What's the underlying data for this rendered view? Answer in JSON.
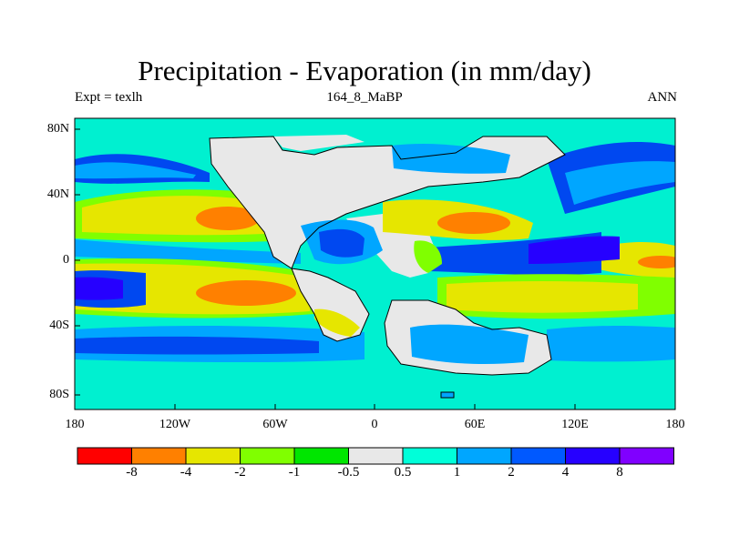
{
  "header": {
    "title": "Precipitation - Evaporation (in mm/day)",
    "left_label": "Expt = texlh",
    "center_label": "164_8_MaBP",
    "right_label": "ANN"
  },
  "axes": {
    "lat_ticks": [
      "80N",
      "40N",
      "0",
      "40S",
      "80S"
    ],
    "lon_ticks": [
      "180",
      "120W",
      "60W",
      "0",
      "60E",
      "120E",
      "180"
    ]
  },
  "colorbar": {
    "colors": [
      "#ff0000",
      "#ff8000",
      "#e6e600",
      "#80ff00",
      "#00e600",
      "#e8e8e8",
      "#00ffd9",
      "#00a6ff",
      "#0059ff",
      "#2600ff",
      "#8000ff"
    ],
    "labels": [
      "-8",
      "-4",
      "-2",
      "-1",
      "-0.5",
      "0.5",
      "1",
      "2",
      "4",
      "8"
    ]
  },
  "palette": {
    "ocean_bg": "#00f0d0",
    "land": "#e8e8e8",
    "strong_wet": "#0048f0",
    "wet": "#00a6ff",
    "very_wet": "#2600ff",
    "dry_green": "#80ff00",
    "dry": "#e6e600",
    "very_dry": "#ff8000",
    "neutral_green": "#00e600"
  }
}
